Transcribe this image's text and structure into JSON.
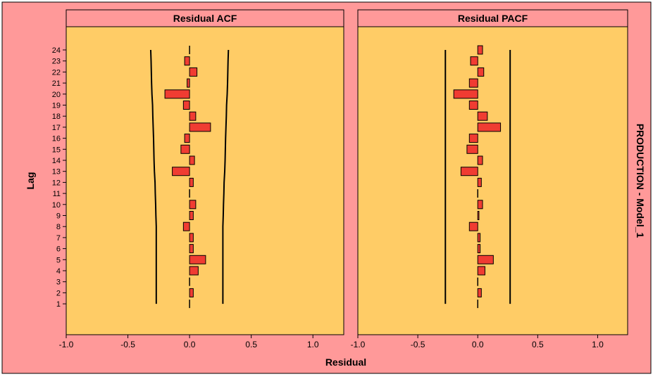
{
  "colors": {
    "outer_background": "#ff9999",
    "panel_fill": "#ffcc66",
    "bar_fill": "#f03c32",
    "bar_stroke": "#000000",
    "line": "#000000"
  },
  "chart_data": {
    "type": "bar",
    "orientation": "horizontal",
    "ylabel": "Lag",
    "xlabel": "Residual",
    "right_label": "PRODUCTION - Model_1",
    "xlim": [
      -1.0,
      1.25
    ],
    "xticks": [
      -1.0,
      -0.5,
      0.0,
      0.5,
      1.0
    ],
    "xtick_labels": [
      "-1.0",
      "-0.5",
      "0.0",
      "0.5",
      "1.0"
    ],
    "lags": [
      1,
      2,
      3,
      4,
      5,
      6,
      7,
      8,
      9,
      10,
      11,
      12,
      13,
      14,
      15,
      16,
      17,
      18,
      19,
      20,
      21,
      22,
      23,
      24
    ],
    "grid": false,
    "legend": "none",
    "panels": [
      {
        "title": "Residual ACF",
        "values": [
          0.0,
          0.03,
          0.0,
          0.07,
          0.13,
          0.03,
          0.03,
          -0.05,
          0.03,
          0.05,
          0.0,
          0.03,
          -0.14,
          0.04,
          -0.07,
          -0.04,
          0.17,
          0.05,
          -0.05,
          -0.2,
          -0.02,
          0.06,
          -0.04,
          0.0
        ],
        "upper_limit": [
          0.27,
          0.27,
          0.27,
          0.27,
          0.27,
          0.27,
          0.27,
          0.27,
          0.273,
          0.275,
          0.278,
          0.28,
          0.285,
          0.288,
          0.29,
          0.292,
          0.295,
          0.298,
          0.3,
          0.305,
          0.308,
          0.31,
          0.312,
          0.315
        ],
        "lower_limit": [
          -0.27,
          -0.27,
          -0.27,
          -0.27,
          -0.27,
          -0.27,
          -0.27,
          -0.27,
          -0.273,
          -0.275,
          -0.278,
          -0.28,
          -0.285,
          -0.288,
          -0.29,
          -0.292,
          -0.295,
          -0.298,
          -0.3,
          -0.305,
          -0.308,
          -0.31,
          -0.312,
          -0.315
        ]
      },
      {
        "title": "Residual PACF",
        "values": [
          0.0,
          0.03,
          0.0,
          0.06,
          0.13,
          0.02,
          0.02,
          -0.07,
          0.01,
          0.04,
          0.0,
          0.03,
          -0.14,
          0.04,
          -0.09,
          -0.07,
          0.19,
          0.08,
          -0.07,
          -0.2,
          -0.07,
          0.05,
          -0.06,
          0.04
        ],
        "upper_limit": [
          0.27,
          0.27,
          0.27,
          0.27,
          0.27,
          0.27,
          0.27,
          0.27,
          0.27,
          0.27,
          0.27,
          0.27,
          0.27,
          0.27,
          0.27,
          0.27,
          0.27,
          0.27,
          0.27,
          0.27,
          0.27,
          0.27,
          0.27,
          0.27
        ],
        "lower_limit": [
          -0.27,
          -0.27,
          -0.27,
          -0.27,
          -0.27,
          -0.27,
          -0.27,
          -0.27,
          -0.27,
          -0.27,
          -0.27,
          -0.27,
          -0.27,
          -0.27,
          -0.27,
          -0.27,
          -0.27,
          -0.27,
          -0.27,
          -0.27,
          -0.27,
          -0.27,
          -0.27,
          -0.27
        ]
      }
    ]
  }
}
